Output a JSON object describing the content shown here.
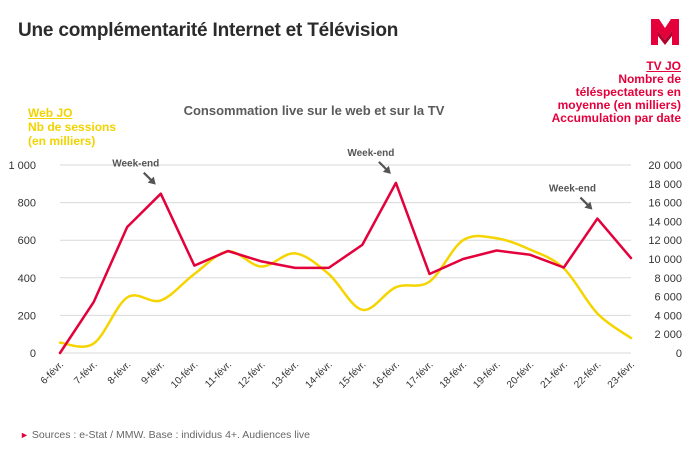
{
  "page": {
    "title": "Une complémentarité Internet et Télévision",
    "source": "Sources : e-Stat / MMW. Base : individus 4+. Audiences live"
  },
  "colors": {
    "web": "#f5d400",
    "tv": "#e3003b",
    "logo": "#e3003b",
    "annotation": "#555555",
    "grid": "#d9d9d9"
  },
  "legend_web": {
    "title": "Web JO",
    "lines": [
      "Nb de sessions",
      "(en milliers)"
    ]
  },
  "legend_tv": {
    "title": "TV JO",
    "lines": [
      "Nombre de",
      "téléspectateurs en",
      "moyenne (en milliers)",
      "Accumulation par date"
    ]
  },
  "icons": {
    "logo": "m-logo-icon"
  },
  "chart_data": {
    "type": "line",
    "subtitle": "Consommation live sur le web et sur la TV",
    "categories": [
      "6-févr.",
      "7-févr.",
      "8-févr.",
      "9-févr.",
      "10-févr.",
      "11-févr.",
      "12-févr.",
      "13-févr.",
      "14-févr.",
      "15-févr.",
      "16-févr.",
      "17-févr.",
      "18-févr.",
      "19-févr.",
      "20-févr.",
      "21-févr.",
      "22-févr.",
      "23-févr."
    ],
    "series": [
      {
        "name": "Web JO",
        "axis": "left",
        "smooth": true,
        "values": [
          55,
          50,
          295,
          280,
          420,
          540,
          460,
          530,
          420,
          230,
          350,
          380,
          600,
          610,
          550,
          450,
          210,
          80
        ]
      },
      {
        "name": "TV JO",
        "axis": "right",
        "smooth": false,
        "values": [
          0,
          5400,
          13400,
          16950,
          9300,
          10850,
          9750,
          9050,
          9050,
          11500,
          18100,
          8400,
          10000,
          10900,
          10450,
          9100,
          14300,
          10100
        ]
      }
    ],
    "y_left": {
      "min": 0,
      "max": 1000,
      "ticks": [
        0,
        200,
        400,
        600,
        800,
        "1 000"
      ]
    },
    "y_right": {
      "min": 0,
      "max": 20000,
      "ticks": [
        "0",
        "2 000",
        "4 000",
        "6 000",
        "8 000",
        "10 000",
        "12 000",
        "14 000",
        "16 000",
        "18 000",
        "20 000"
      ]
    },
    "grid": true,
    "annotations": [
      {
        "text": "Week-end",
        "category": "9-févr."
      },
      {
        "text": "Week-end",
        "category": "16-févr."
      },
      {
        "text": "Week-end",
        "category": "22-févr."
      }
    ]
  }
}
